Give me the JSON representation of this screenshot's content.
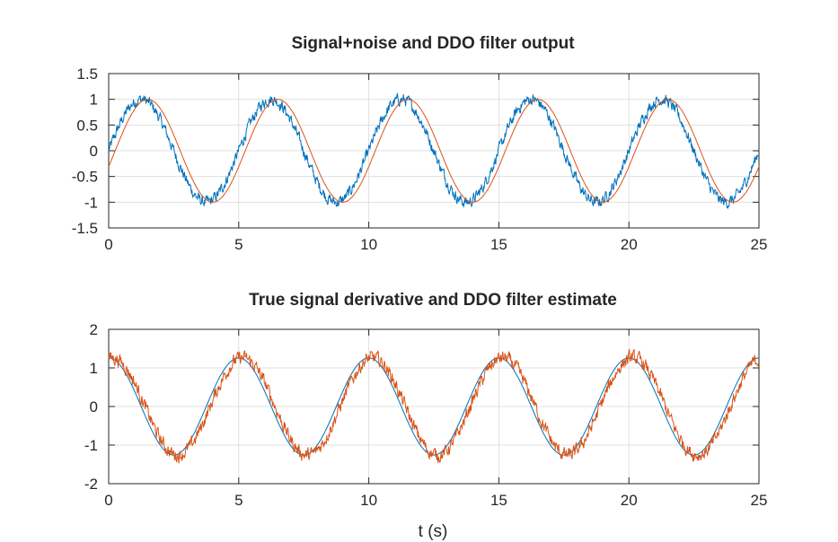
{
  "chart_data": [
    {
      "type": "line",
      "title": "Signal+noise and DDO filter output",
      "xlabel": "",
      "ylabel": "",
      "xlim": [
        0,
        25
      ],
      "ylim": [
        -1.5,
        1.5
      ],
      "xticks": [
        "0",
        "5",
        "10",
        "15",
        "20",
        "25"
      ],
      "yticks": [
        "-1.5",
        "-1",
        "-0.5",
        "0",
        "0.5",
        "1",
        "1.5"
      ],
      "grid": true,
      "legend": "none",
      "series": [
        {
          "color": "#0072bd",
          "function": "sin",
          "amplitude": 1.0,
          "period": 5.0,
          "phase_shift": 0.0,
          "noise_amplitude": 0.09,
          "samples": 1500
        },
        {
          "color": "#d95319",
          "function": "sin",
          "amplitude": 1.0,
          "period": 5.0,
          "phase_shift": 0.25,
          "noise_amplitude": 0.0,
          "samples": 400
        }
      ]
    },
    {
      "type": "line",
      "title": "True signal derivative and DDO filter estimate",
      "xlabel": "t (s)",
      "ylabel": "",
      "xlim": [
        0,
        25
      ],
      "ylim": [
        -2,
        2
      ],
      "xticks": [
        "0",
        "5",
        "10",
        "15",
        "20",
        "25"
      ],
      "yticks": [
        "-2",
        "-1",
        "0",
        "1",
        "2"
      ],
      "grid": true,
      "legend": "none",
      "series": [
        {
          "color": "#0072bd",
          "function": "cos",
          "amplitude": 1.26,
          "period": 5.0,
          "phase_shift": 0.0,
          "noise_amplitude": 0.0,
          "samples": 400
        },
        {
          "color": "#d95319",
          "function": "cos",
          "amplitude": 1.26,
          "period": 5.0,
          "phase_shift": 0.15,
          "noise_amplitude": 0.14,
          "samples": 1500
        }
      ]
    }
  ]
}
